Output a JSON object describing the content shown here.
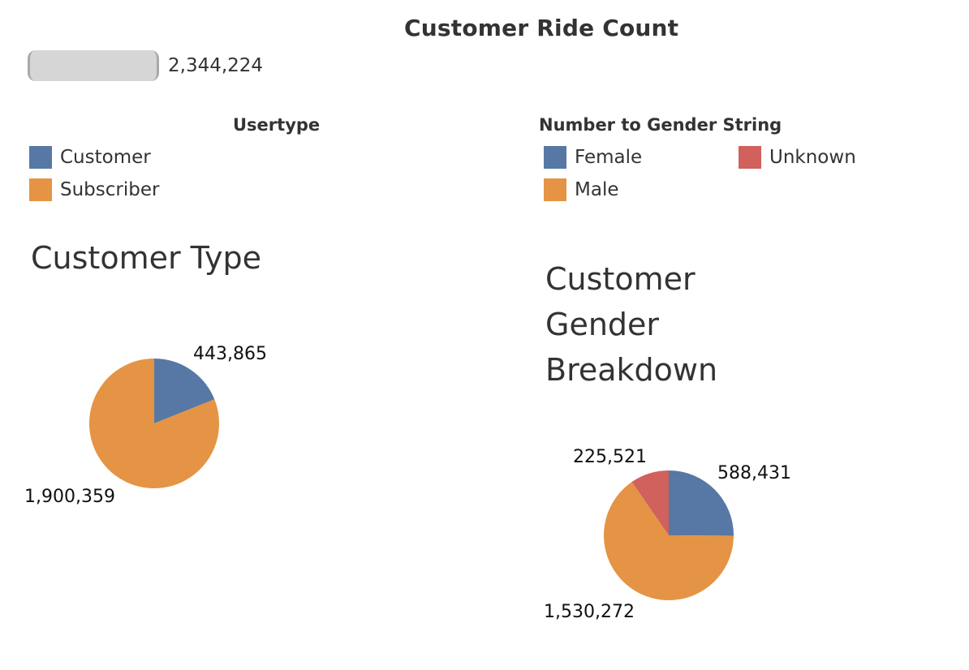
{
  "header": {
    "title": "Customer Ride Count",
    "total_value": "2,344,224"
  },
  "legend_usertype": {
    "title": "Usertype",
    "items": [
      {
        "label": "Customer",
        "color": "#5778a4"
      },
      {
        "label": "Subscriber",
        "color": "#e49444"
      }
    ]
  },
  "legend_gender": {
    "title": "Number to Gender String",
    "items": [
      {
        "label": "Female",
        "color": "#5778a4"
      },
      {
        "label": "Male",
        "color": "#e49444"
      },
      {
        "label": "Unknown",
        "color": "#d1615d"
      }
    ]
  },
  "chart_data": [
    {
      "type": "pie",
      "title": "Customer Type",
      "categories": [
        "Customer",
        "Subscriber"
      ],
      "values": [
        443865,
        1900359
      ],
      "labels": [
        "443,865",
        "1,900,359"
      ],
      "colors": [
        "#5778a4",
        "#e49444"
      ]
    },
    {
      "type": "pie",
      "title": "Customer\nGender\nBreakdown",
      "categories": [
        "Female",
        "Male",
        "Unknown"
      ],
      "values": [
        588431,
        1530272,
        225521
      ],
      "labels": [
        "588,431",
        "1,530,272",
        "225,521"
      ],
      "colors": [
        "#5778a4",
        "#e49444",
        "#d1615d"
      ]
    }
  ]
}
